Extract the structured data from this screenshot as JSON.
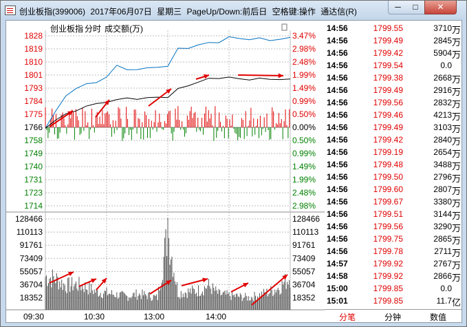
{
  "window": {
    "title_parts": [
      "创业板指(399006)",
      "2017年06月07日",
      "星期三",
      "PageUp/Down:前后日",
      "空格键:操作",
      "通达信(R)"
    ],
    "btn_min": "─",
    "btn_max": "□",
    "btn_close": "✕",
    "colors": {
      "up": "#e00000",
      "down": "#008000",
      "price_line": "#0070c0",
      "avg_line": "#000000",
      "arrow": "#e00000"
    }
  },
  "chart_header": {
    "name": "创业板指",
    "mode": "分时",
    "indicator": "成交额(万)"
  },
  "price_axis": {
    "left_labels": [
      "1828",
      "1819",
      "1810",
      "1801",
      "1793",
      "1784",
      "1775",
      "1766",
      "1758",
      "1749",
      "1740",
      "1731",
      "1723",
      "1714"
    ],
    "right_labels": [
      "3.47%",
      "2.98%",
      "2.48%",
      "1.99%",
      "1.49%",
      "0.99%",
      "0.50%",
      "0.00%",
      "0.50%",
      "0.99%",
      "1.49%",
      "1.99%",
      "2.48%",
      "2.98%"
    ],
    "base_index": 7
  },
  "volume_axis": {
    "labels": [
      "128466",
      "110113",
      "91761",
      "73409",
      "55057",
      "36704",
      "18352"
    ]
  },
  "time_axis": {
    "labels": [
      "09:30",
      "10:30",
      "13:00",
      "14:00"
    ]
  },
  "chart_data": {
    "type": "line",
    "title": "",
    "price_series_1": {
      "x": [
        0,
        10,
        20,
        30,
        40,
        50,
        60,
        70,
        80,
        90,
        100,
        110,
        120,
        130,
        140,
        150,
        160,
        170,
        180,
        190,
        200,
        210,
        220,
        230,
        240
      ],
      "y": [
        1766,
        1778,
        1787,
        1793,
        1796,
        1796,
        1801,
        1808,
        1805,
        1806,
        1806,
        1807,
        1808,
        1819,
        1820,
        1822,
        1823,
        1824,
        1827,
        1826,
        1826,
        1826,
        1825,
        1826,
        1827
      ]
    },
    "price_series_2": {
      "x": [
        0,
        10,
        20,
        30,
        40,
        50,
        60,
        70,
        80,
        90,
        100,
        110,
        120,
        130,
        140,
        150,
        160,
        170,
        180,
        190,
        200,
        210,
        220,
        230,
        240
      ],
      "y": [
        1766,
        1772,
        1775,
        1778,
        1781,
        1782,
        1784,
        1785,
        1786,
        1786,
        1786,
        1787,
        1787,
        1792,
        1795,
        1797,
        1799,
        1800,
        1800,
        1799,
        1799,
        1799,
        1799,
        1799,
        1799
      ]
    },
    "volume": {
      "x": [
        0,
        10,
        20,
        30,
        40,
        50,
        60,
        70,
        80,
        90,
        100,
        110,
        120,
        130,
        140,
        150,
        160,
        170,
        180,
        190,
        200,
        210,
        220,
        230,
        240
      ],
      "y": [
        55057,
        52000,
        40000,
        42000,
        38000,
        30000,
        28000,
        25000,
        22000,
        26000,
        24000,
        20000,
        130000,
        28000,
        30000,
        32000,
        40000,
        26000,
        24000,
        22000,
        20000,
        25000,
        30000,
        38000,
        55057
      ]
    },
    "xlim": [
      0,
      240
    ],
    "ylim_price": [
      1714,
      1828
    ],
    "ylim_volume": [
      0,
      128466
    ]
  },
  "trades": [
    {
      "time": "14:56",
      "price": "1799.55",
      "vol": "3710",
      "unit": "万"
    },
    {
      "time": "14:56",
      "price": "1799.49",
      "vol": "2845",
      "unit": "万"
    },
    {
      "time": "14:56",
      "price": "1799.42",
      "vol": "5904",
      "unit": "万"
    },
    {
      "time": "14:56",
      "price": "1799.54",
      "vol": "0.0",
      "unit": ""
    },
    {
      "time": "14:56",
      "price": "1799.38",
      "vol": "2668",
      "unit": "万"
    },
    {
      "time": "14:56",
      "price": "1799.49",
      "vol": "2916",
      "unit": "万"
    },
    {
      "time": "14:56",
      "price": "1799.56",
      "vol": "2832",
      "unit": "万"
    },
    {
      "time": "14:56",
      "price": "1799.46",
      "vol": "4213",
      "unit": "万"
    },
    {
      "time": "14:56",
      "price": "1799.49",
      "vol": "3103",
      "unit": "万"
    },
    {
      "time": "14:56",
      "price": "1799.42",
      "vol": "2840",
      "unit": "万"
    },
    {
      "time": "14:56",
      "price": "1799.19",
      "vol": "2654",
      "unit": "万"
    },
    {
      "time": "14:56",
      "price": "1799.48",
      "vol": "3488",
      "unit": "万"
    },
    {
      "time": "14:56",
      "price": "1799.50",
      "vol": "2796",
      "unit": "万"
    },
    {
      "time": "14:56",
      "price": "1799.60",
      "vol": "2807",
      "unit": "万"
    },
    {
      "time": "14:56",
      "price": "1799.67",
      "vol": "3380",
      "unit": "万"
    },
    {
      "time": "14:56",
      "price": "1799.51",
      "vol": "3144",
      "unit": "万"
    },
    {
      "time": "14:56",
      "price": "1799.56",
      "vol": "3290",
      "unit": "万"
    },
    {
      "time": "14:56",
      "price": "1799.75",
      "vol": "2865",
      "unit": "万"
    },
    {
      "time": "14:56",
      "price": "1799.78",
      "vol": "2711",
      "unit": "万"
    },
    {
      "time": "14:57",
      "price": "1799.92",
      "vol": "2767",
      "unit": "万"
    },
    {
      "time": "14:58",
      "price": "1799.92",
      "vol": "2866",
      "unit": "万"
    },
    {
      "time": "15:00",
      "price": "1799.85",
      "vol": "0.0",
      "unit": ""
    },
    {
      "time": "15:01",
      "price": "1799.85",
      "vol": "11.7",
      "unit": "亿"
    }
  ],
  "tabs": [
    "分笔",
    "分钟",
    "数值"
  ]
}
